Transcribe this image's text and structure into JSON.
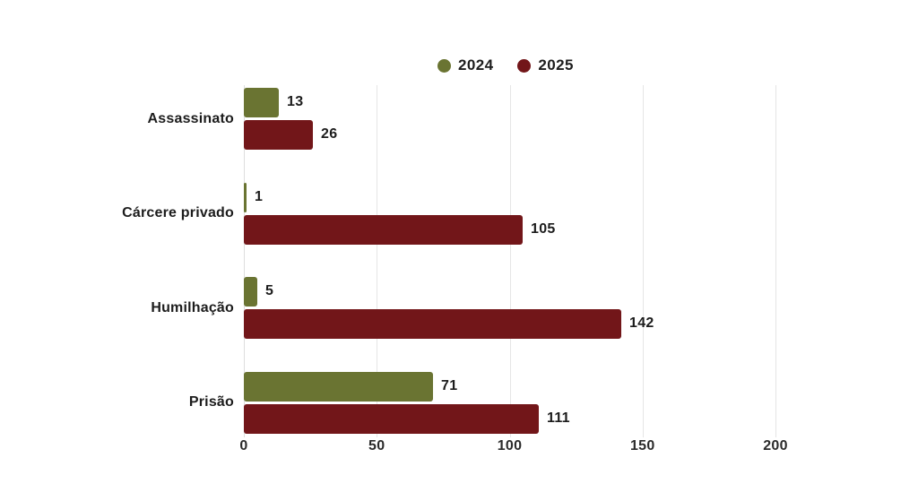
{
  "colors": {
    "background": "#ffffff",
    "grid": "#e5e5e5",
    "axis_line": "#dedede",
    "text": "#1c1c1c",
    "series_2024": "#6A7432",
    "series_2025": "#721619"
  },
  "chart_data": {
    "type": "bar",
    "orientation": "horizontal",
    "title": "",
    "xlabel": "",
    "ylabel": "",
    "categories": [
      "Assassinato",
      "Cárcere privado",
      "Humilhação",
      "Prisão"
    ],
    "series": [
      {
        "name": "2024",
        "color": "#6A7432",
        "values": [
          13,
          1,
          5,
          71
        ]
      },
      {
        "name": "2025",
        "color": "#721619",
        "values": [
          26,
          105,
          142,
          111
        ]
      }
    ],
    "xlim": [
      0,
      200
    ],
    "xticks": [
      0,
      50,
      100,
      150,
      200
    ],
    "grid": true,
    "legend_position": "top-center",
    "value_labels_shown": true
  }
}
